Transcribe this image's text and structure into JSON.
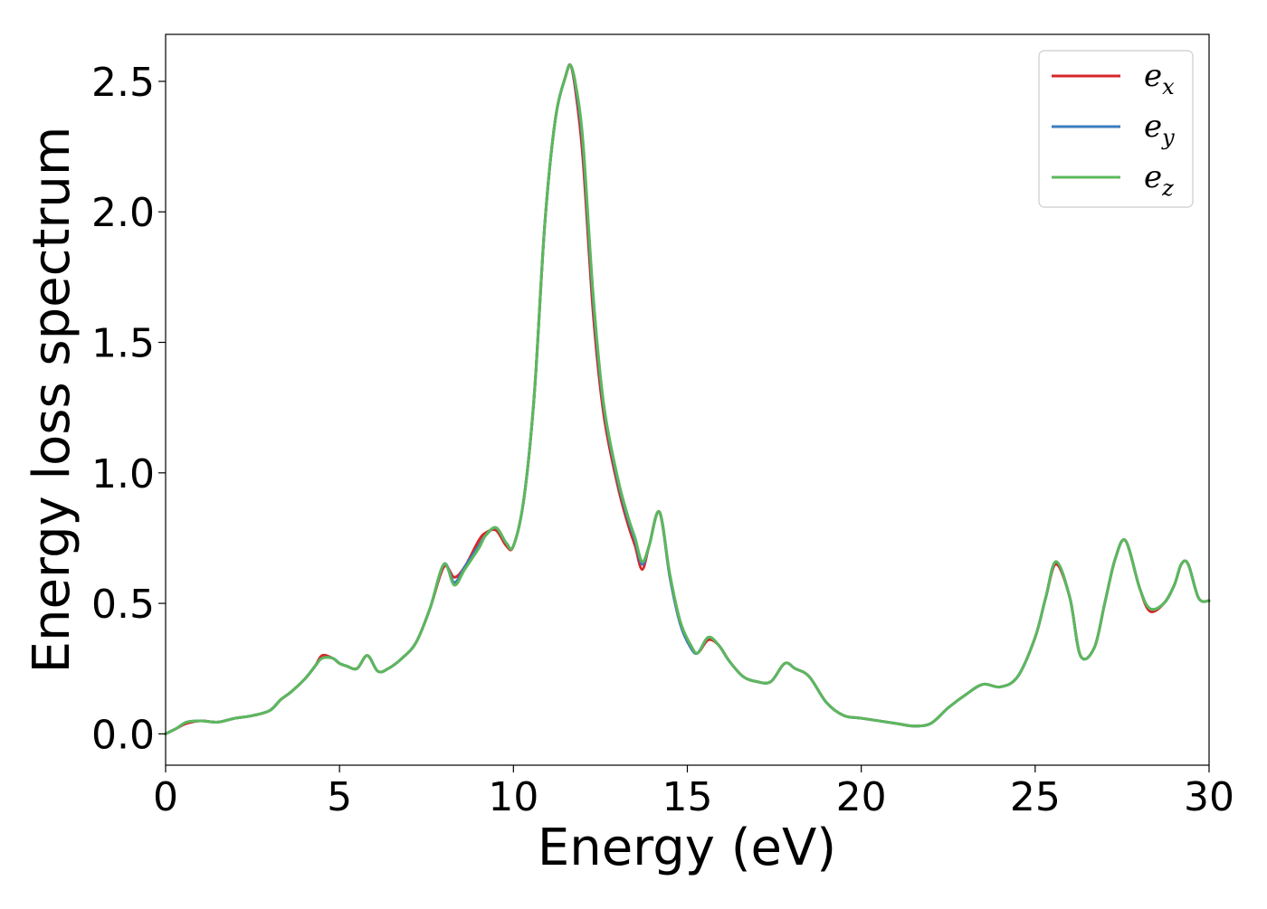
{
  "chart_data": {
    "type": "line",
    "title": "",
    "xlabel": "Energy (eV)",
    "ylabel": "Energy loss spectrum",
    "xlim": [
      0,
      30
    ],
    "ylim": [
      -0.12,
      2.68
    ],
    "xticks": [
      0,
      5,
      10,
      15,
      20,
      25,
      30
    ],
    "xtick_labels": [
      "0",
      "5",
      "10",
      "15",
      "20",
      "25",
      "30"
    ],
    "yticks": [
      0.0,
      0.5,
      1.0,
      1.5,
      2.0,
      2.5
    ],
    "ytick_labels": [
      "0.0",
      "0.5",
      "1.0",
      "1.5",
      "2.0",
      "2.5"
    ],
    "grid": false,
    "legend_position": "top-right",
    "series": [
      {
        "name": "e_x",
        "label_main": "e",
        "label_sub": "x",
        "color": "#d62728",
        "x": [
          0,
          0.3,
          0.6,
          1.0,
          1.5,
          2.0,
          2.5,
          3.0,
          3.3,
          3.6,
          4.0,
          4.3,
          4.5,
          4.8,
          5.0,
          5.2,
          5.5,
          5.8,
          6.1,
          6.4,
          6.8,
          7.2,
          7.6,
          8.0,
          8.3,
          8.6,
          9.0,
          9.2,
          9.5,
          9.8,
          10.0,
          10.3,
          10.6,
          10.9,
          11.2,
          11.5,
          11.65,
          11.8,
          12.0,
          12.3,
          12.6,
          13.0,
          13.3,
          13.5,
          13.7,
          13.9,
          14.2,
          14.5,
          14.8,
          15.1,
          15.3,
          15.6,
          15.9,
          16.2,
          16.6,
          17.0,
          17.4,
          17.8,
          18.1,
          18.5,
          19.0,
          19.5,
          20.0,
          21.0,
          21.5,
          22.0,
          22.5,
          23.0,
          23.5,
          24.0,
          24.5,
          25.0,
          25.3,
          25.6,
          26.0,
          26.3,
          26.7,
          27.0,
          27.3,
          27.6,
          28.0,
          28.3,
          28.7,
          29.0,
          29.2,
          29.4,
          29.7,
          30.0
        ],
        "y": [
          0.0,
          0.02,
          0.04,
          0.05,
          0.045,
          0.06,
          0.07,
          0.09,
          0.13,
          0.16,
          0.21,
          0.26,
          0.3,
          0.29,
          0.27,
          0.26,
          0.25,
          0.3,
          0.24,
          0.25,
          0.29,
          0.35,
          0.48,
          0.64,
          0.6,
          0.64,
          0.74,
          0.77,
          0.78,
          0.72,
          0.72,
          0.9,
          1.3,
          1.95,
          2.35,
          2.52,
          2.56,
          2.45,
          2.2,
          1.6,
          1.22,
          0.95,
          0.8,
          0.72,
          0.63,
          0.72,
          0.85,
          0.6,
          0.42,
          0.33,
          0.31,
          0.36,
          0.34,
          0.28,
          0.22,
          0.2,
          0.2,
          0.27,
          0.25,
          0.22,
          0.12,
          0.07,
          0.06,
          0.04,
          0.03,
          0.04,
          0.1,
          0.15,
          0.19,
          0.18,
          0.22,
          0.37,
          0.52,
          0.65,
          0.52,
          0.3,
          0.33,
          0.5,
          0.67,
          0.74,
          0.56,
          0.47,
          0.5,
          0.57,
          0.65,
          0.65,
          0.52,
          0.51
        ]
      },
      {
        "name": "e_y",
        "label_main": "e",
        "label_sub": "y",
        "color": "#3a7dbf",
        "x": [
          0,
          0.3,
          0.6,
          1.0,
          1.5,
          2.0,
          2.5,
          3.0,
          3.3,
          3.6,
          4.0,
          4.3,
          4.5,
          4.8,
          5.0,
          5.2,
          5.5,
          5.8,
          6.1,
          6.4,
          6.8,
          7.2,
          7.6,
          8.0,
          8.3,
          8.6,
          9.0,
          9.2,
          9.5,
          9.8,
          10.0,
          10.3,
          10.6,
          10.9,
          11.2,
          11.5,
          11.65,
          11.8,
          12.0,
          12.3,
          12.6,
          13.0,
          13.3,
          13.5,
          13.7,
          13.9,
          14.2,
          14.5,
          14.8,
          15.1,
          15.3,
          15.6,
          15.9,
          16.2,
          16.6,
          17.0,
          17.4,
          17.8,
          18.1,
          18.5,
          19.0,
          19.5,
          20.0,
          21.0,
          21.5,
          22.0,
          22.5,
          23.0,
          23.5,
          24.0,
          24.5,
          25.0,
          25.3,
          25.6,
          26.0,
          26.3,
          26.7,
          27.0,
          27.3,
          27.6,
          28.0,
          28.3,
          28.7,
          29.0,
          29.2,
          29.4,
          29.7,
          30.0
        ],
        "y": [
          0.0,
          0.02,
          0.045,
          0.05,
          0.045,
          0.06,
          0.07,
          0.09,
          0.13,
          0.16,
          0.21,
          0.26,
          0.29,
          0.29,
          0.27,
          0.26,
          0.25,
          0.3,
          0.24,
          0.25,
          0.29,
          0.35,
          0.48,
          0.65,
          0.58,
          0.64,
          0.72,
          0.76,
          0.79,
          0.73,
          0.72,
          0.9,
          1.3,
          1.95,
          2.35,
          2.52,
          2.56,
          2.47,
          2.25,
          1.65,
          1.25,
          0.97,
          0.82,
          0.74,
          0.65,
          0.72,
          0.85,
          0.6,
          0.42,
          0.33,
          0.31,
          0.37,
          0.34,
          0.28,
          0.22,
          0.2,
          0.2,
          0.27,
          0.25,
          0.22,
          0.12,
          0.07,
          0.06,
          0.04,
          0.03,
          0.04,
          0.1,
          0.15,
          0.19,
          0.18,
          0.22,
          0.37,
          0.52,
          0.66,
          0.52,
          0.3,
          0.33,
          0.5,
          0.67,
          0.74,
          0.56,
          0.48,
          0.5,
          0.57,
          0.65,
          0.65,
          0.52,
          0.51
        ]
      },
      {
        "name": "e_z",
        "label_main": "e",
        "label_sub": "z",
        "color": "#5cb85c",
        "x": [
          0,
          0.3,
          0.6,
          1.0,
          1.5,
          2.0,
          2.5,
          3.0,
          3.3,
          3.6,
          4.0,
          4.3,
          4.5,
          4.8,
          5.0,
          5.2,
          5.5,
          5.8,
          6.1,
          6.4,
          6.8,
          7.2,
          7.6,
          8.0,
          8.3,
          8.6,
          9.0,
          9.2,
          9.5,
          9.8,
          10.0,
          10.3,
          10.6,
          10.9,
          11.2,
          11.5,
          11.65,
          11.8,
          12.0,
          12.3,
          12.6,
          13.0,
          13.3,
          13.5,
          13.7,
          13.9,
          14.2,
          14.5,
          14.8,
          15.1,
          15.3,
          15.6,
          15.9,
          16.2,
          16.6,
          17.0,
          17.4,
          17.8,
          18.1,
          18.5,
          19.0,
          19.5,
          20.0,
          21.0,
          21.5,
          22.0,
          22.5,
          23.0,
          23.5,
          24.0,
          24.5,
          25.0,
          25.3,
          25.6,
          26.0,
          26.3,
          26.7,
          27.0,
          27.3,
          27.6,
          28.0,
          28.3,
          28.7,
          29.0,
          29.2,
          29.4,
          29.7,
          30.0
        ],
        "y": [
          0.0,
          0.02,
          0.045,
          0.05,
          0.045,
          0.06,
          0.07,
          0.09,
          0.13,
          0.16,
          0.21,
          0.26,
          0.29,
          0.29,
          0.27,
          0.26,
          0.25,
          0.3,
          0.24,
          0.25,
          0.29,
          0.35,
          0.48,
          0.65,
          0.57,
          0.63,
          0.71,
          0.76,
          0.79,
          0.73,
          0.72,
          0.9,
          1.3,
          1.95,
          2.35,
          2.52,
          2.56,
          2.48,
          2.27,
          1.67,
          1.26,
          0.98,
          0.83,
          0.75,
          0.66,
          0.72,
          0.85,
          0.61,
          0.43,
          0.34,
          0.31,
          0.37,
          0.34,
          0.28,
          0.22,
          0.2,
          0.2,
          0.27,
          0.25,
          0.22,
          0.12,
          0.07,
          0.06,
          0.04,
          0.03,
          0.04,
          0.1,
          0.15,
          0.19,
          0.18,
          0.22,
          0.37,
          0.52,
          0.66,
          0.52,
          0.3,
          0.33,
          0.5,
          0.67,
          0.74,
          0.56,
          0.48,
          0.5,
          0.57,
          0.65,
          0.65,
          0.52,
          0.51
        ]
      }
    ]
  }
}
